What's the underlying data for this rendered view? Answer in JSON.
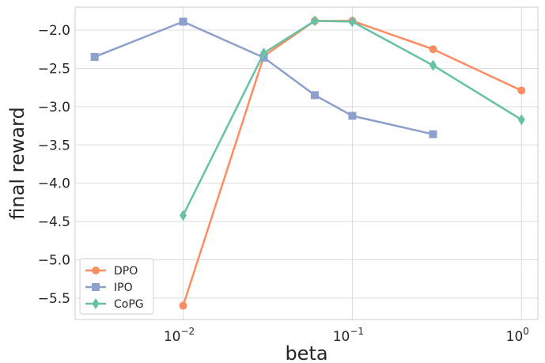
{
  "chart_data": {
    "type": "line",
    "xlabel": "beta",
    "ylabel": "final reward",
    "x_scale": "log",
    "xlim": [
      0.0023,
      1.25
    ],
    "ylim": [
      -5.78,
      -1.7
    ],
    "grid": true,
    "legend_position": "lower-left",
    "x_ticks": [
      {
        "value": 0.01,
        "base": "10",
        "exp": "−2"
      },
      {
        "value": 0.1,
        "base": "10",
        "exp": "−1"
      },
      {
        "value": 1,
        "base": "10",
        "exp": "0"
      }
    ],
    "y_ticks": [
      {
        "value": -2.0,
        "label": "−2.0"
      },
      {
        "value": -2.5,
        "label": "−2.5"
      },
      {
        "value": -3.0,
        "label": "−3.0"
      },
      {
        "value": -3.5,
        "label": "−3.5"
      },
      {
        "value": -4.0,
        "label": "−4.0"
      },
      {
        "value": -4.5,
        "label": "−4.5"
      },
      {
        "value": -5.0,
        "label": "−5.0"
      },
      {
        "value": -5.5,
        "label": "−5.5"
      }
    ],
    "series": [
      {
        "name": "DPO",
        "color": "#fc8d62",
        "marker": "circle",
        "x": [
          0.01,
          0.03,
          0.06,
          0.1,
          0.3,
          1.0
        ],
        "y": [
          -5.6,
          -2.34,
          -1.88,
          -1.88,
          -2.25,
          -2.79
        ]
      },
      {
        "name": "IPO",
        "color": "#8da0cb",
        "marker": "square",
        "x": [
          0.003,
          0.01,
          0.03,
          0.06,
          0.1,
          0.3
        ],
        "y": [
          -2.35,
          -1.89,
          -2.36,
          -2.85,
          -3.12,
          -3.36
        ]
      },
      {
        "name": "CoPG",
        "color": "#66c2a5",
        "marker": "diamond",
        "x": [
          0.01,
          0.03,
          0.06,
          0.1,
          0.3,
          1.0
        ],
        "y": [
          -4.42,
          -2.3,
          -1.88,
          -1.89,
          -2.46,
          -3.17
        ]
      }
    ]
  }
}
